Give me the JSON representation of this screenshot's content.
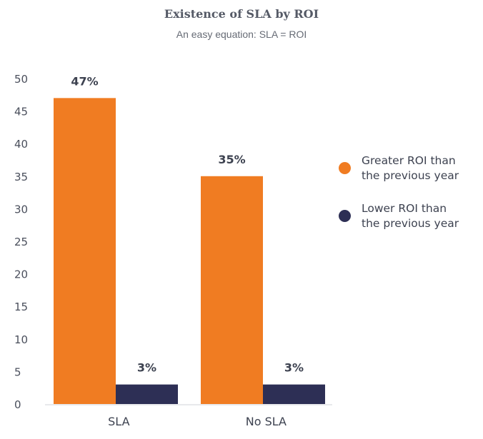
{
  "chart_data": {
    "type": "bar",
    "title": "Existence of SLA by ROI",
    "subtitle": "An easy equation: SLA = ROI",
    "categories": [
      "SLA",
      "No SLA"
    ],
    "series": [
      {
        "name": "Greater ROI than the previous year",
        "values": [
          47,
          35
        ],
        "labels": [
          "47%",
          "35%"
        ],
        "color": "#f07c22"
      },
      {
        "name": "Lower ROI than the previous year",
        "values": [
          3,
          3
        ],
        "labels": [
          "3%",
          "3%"
        ],
        "color": "#2d2f55"
      }
    ],
    "yticks": [
      "0",
      "5",
      "10",
      "15",
      "20",
      "25",
      "30",
      "35",
      "40",
      "45",
      "50"
    ],
    "ylim": [
      0,
      50
    ],
    "grid": false,
    "legend_position": "right"
  },
  "legend": {
    "items": [
      {
        "label_line1": "Greater ROI than",
        "label_line2": "the previous year",
        "color": "#f07c22"
      },
      {
        "label_line1": "Lower ROI than",
        "label_line2": "the previous year",
        "color": "#2d2f55"
      }
    ]
  }
}
